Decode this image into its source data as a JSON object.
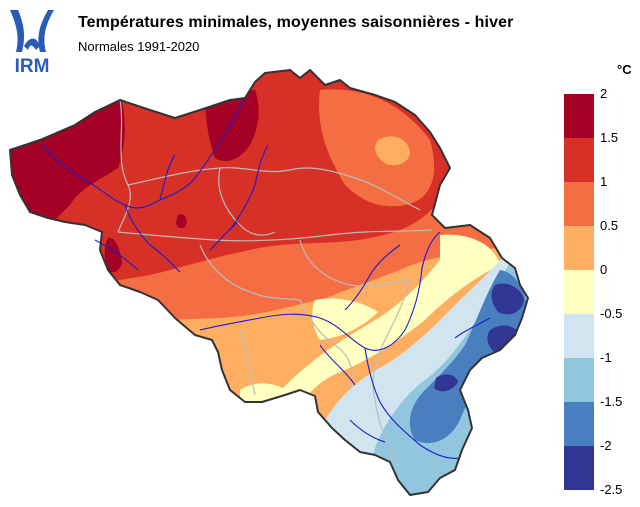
{
  "header": {
    "logo_text": "IRM",
    "title": "Températures minimales, moyennes saisonnières - hiver",
    "subtitle": "Normales 1991-2020"
  },
  "legend": {
    "unit": "°C",
    "ticks": [
      "2",
      "1.5",
      "1",
      "0.5",
      "0",
      "-0.5",
      "-1",
      "-1.5",
      "-2",
      "-2.5"
    ],
    "classes": [
      {
        "range": "1.5 – 2",
        "color": "#a50026"
      },
      {
        "range": "1 – 1.5",
        "color": "#d73027"
      },
      {
        "range": "0.5 – 1",
        "color": "#f46d43"
      },
      {
        "range": "0 – 0.5",
        "color": "#fdae61"
      },
      {
        "range": "-0.5 – 0",
        "color": "#ffffbf"
      },
      {
        "range": "-1 – -0.5",
        "color": "#d1e5f0"
      },
      {
        "range": "-1.5 – -1",
        "color": "#92c5de"
      },
      {
        "range": "-2 – -1.5",
        "color": "#4a7fbf"
      },
      {
        "range": "-2.5 – -2",
        "color": "#313695"
      }
    ]
  },
  "colors": {
    "border": "#333333",
    "rivers": "#1c1ccf",
    "provinces": "#bbbbbb",
    "logo": "#2a5bb8"
  }
}
